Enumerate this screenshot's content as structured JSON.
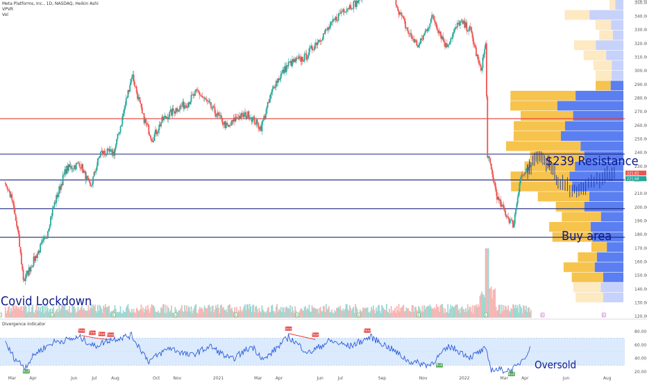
{
  "header": {
    "title": "Meta Platforms, Inc., 1D, NASDAQ, Heikin Ashi",
    "indicator1": "VPVR",
    "indicator2": "Vol",
    "osc_title": "Divergence indicator"
  },
  "annotations": {
    "resistance": "$239 Resistance",
    "buy": "Buy area",
    "covid": "Covid Lockdown",
    "oversold": "Oversold"
  },
  "colors": {
    "bull": "#26a69a",
    "bear": "#ef5350",
    "hline_blue": "#1a237e",
    "hline_red": "#e53935",
    "vp_up": "#5b7ff0",
    "vp_down": "#f6c34d",
    "vp_up_light": "#c7d2fb",
    "vp_down_light": "#fde9c2",
    "osc_line": "#2a5bd7",
    "osc_band": "#dbeafd",
    "bull_signal": "#43a047",
    "bear_signal": "#e53935"
  },
  "chart_data": [
    {
      "type": "candlestick",
      "title": "Meta Platforms, Inc., 1D, NASDAQ, Heikin Ashi",
      "y_ticks": [
        352,
        350,
        340,
        330,
        320,
        310,
        300,
        290,
        280,
        270,
        260,
        250,
        240,
        230,
        220,
        210,
        200,
        190,
        180,
        170,
        160,
        150,
        140,
        130,
        120
      ],
      "ylim": [
        118,
        352
      ],
      "x_ticks": [
        "Mar",
        "Apr",
        "Jun",
        "Jul",
        "Aug",
        "Oct",
        "Nov",
        "2021",
        "Mar",
        "Apr",
        "Jun",
        "Jul",
        "Sep",
        "Nov",
        "2022",
        "Mar",
        "Apr",
        "Jun",
        "Aug"
      ],
      "price_labels": [
        {
          "value": "221.82",
          "color": "#ef5350"
        },
        {
          "value": "221.68",
          "color": "#26a69a"
        }
      ],
      "horizontal_levels": [
        {
          "value": 265,
          "color": "red"
        },
        {
          "value": 239,
          "color": "blue"
        },
        {
          "value": 220,
          "color": "blue"
        },
        {
          "value": 199,
          "color": "blue"
        },
        {
          "value": 178,
          "color": "blue"
        }
      ],
      "price_path": [
        {
          "date": "2020-02-20",
          "close": 218
        },
        {
          "date": "2020-03-01",
          "close": 205
        },
        {
          "date": "2020-03-10",
          "close": 180
        },
        {
          "date": "2020-03-18",
          "close": 146
        },
        {
          "date": "2020-04-01",
          "close": 160
        },
        {
          "date": "2020-04-20",
          "close": 178
        },
        {
          "date": "2020-05-01",
          "close": 200
        },
        {
          "date": "2020-05-20",
          "close": 228
        },
        {
          "date": "2020-06-10",
          "close": 232
        },
        {
          "date": "2020-06-25",
          "close": 214
        },
        {
          "date": "2020-07-10",
          "close": 240
        },
        {
          "date": "2020-07-30",
          "close": 240
        },
        {
          "date": "2020-08-10",
          "close": 262
        },
        {
          "date": "2020-08-26",
          "close": 298
        },
        {
          "date": "2020-09-10",
          "close": 268
        },
        {
          "date": "2020-09-25",
          "close": 250
        },
        {
          "date": "2020-10-10",
          "close": 264
        },
        {
          "date": "2020-10-30",
          "close": 272
        },
        {
          "date": "2020-11-15",
          "close": 276
        },
        {
          "date": "2020-12-01",
          "close": 285
        },
        {
          "date": "2020-12-20",
          "close": 274
        },
        {
          "date": "2021-01-15",
          "close": 258
        },
        {
          "date": "2021-01-28",
          "close": 266
        },
        {
          "date": "2021-02-15",
          "close": 268
        },
        {
          "date": "2021-03-05",
          "close": 258
        },
        {
          "date": "2021-03-25",
          "close": 290
        },
        {
          "date": "2021-04-15",
          "close": 305
        },
        {
          "date": "2021-05-10",
          "close": 310
        },
        {
          "date": "2021-05-25",
          "close": 320
        },
        {
          "date": "2021-06-15",
          "close": 332
        },
        {
          "date": "2021-07-05",
          "close": 345
        },
        {
          "date": "2021-07-25",
          "close": 350
        },
        {
          "date": "2021-08-05",
          "close": 358
        },
        {
          "date": "2021-08-20",
          "close": 362
        },
        {
          "date": "2021-09-05",
          "close": 380
        },
        {
          "date": "2021-09-25",
          "close": 345
        },
        {
          "date": "2021-10-10",
          "close": 328
        },
        {
          "date": "2021-10-25",
          "close": 318
        },
        {
          "date": "2021-11-15",
          "close": 340
        },
        {
          "date": "2021-12-05",
          "close": 318
        },
        {
          "date": "2021-12-25",
          "close": 336
        },
        {
          "date": "2022-01-10",
          "close": 330
        },
        {
          "date": "2022-01-25",
          "close": 300
        },
        {
          "date": "2022-02-02",
          "close": 320
        },
        {
          "date": "2022-02-04",
          "close": 240
        },
        {
          "date": "2022-02-20",
          "close": 205
        },
        {
          "date": "2022-03-10",
          "close": 190
        },
        {
          "date": "2022-03-15",
          "close": 187
        },
        {
          "date": "2022-03-25",
          "close": 222
        },
        {
          "date": "2022-04-01",
          "close": 225
        },
        {
          "date": "2022-04-10",
          "close": 229
        }
      ],
      "projection_path": [
        {
          "date": "2022-04-05",
          "close": 228
        },
        {
          "date": "2022-04-20",
          "close": 238
        },
        {
          "date": "2022-05-05",
          "close": 232
        },
        {
          "date": "2022-05-20",
          "close": 220
        },
        {
          "date": "2022-06-10",
          "close": 212
        },
        {
          "date": "2022-06-30",
          "close": 215
        },
        {
          "date": "2022-07-25",
          "close": 222
        },
        {
          "date": "2022-08-15",
          "close": 225
        }
      ]
    },
    {
      "type": "bar",
      "title": "Vol",
      "description_values": "volume bars, mostly low with a large spike near 2022-02-04",
      "earnings_markers": [
        "E",
        "E",
        "E",
        "E",
        "E",
        "E",
        "E",
        "E",
        "E",
        "E",
        "E"
      ]
    },
    {
      "type": "line",
      "title": "Divergence indicator",
      "y_ticks": [
        80,
        60,
        40,
        20
      ],
      "ylim": [
        14,
        86
      ],
      "band": [
        30,
        70
      ],
      "signals": [
        {
          "label": "Bull",
          "date": "2020-03-22",
          "value": 28
        },
        {
          "label": "Bear",
          "date": "2020-06-12",
          "value": 74
        },
        {
          "label": "Bear",
          "date": "2020-06-28",
          "value": 71
        },
        {
          "label": "Bear",
          "date": "2020-07-12",
          "value": 69
        },
        {
          "label": "Bear",
          "date": "2020-07-25",
          "value": 68
        },
        {
          "label": "Bear",
          "date": "2021-04-15",
          "value": 77
        },
        {
          "label": "Bear",
          "date": "2021-05-25",
          "value": 68
        },
        {
          "label": "Bear",
          "date": "2021-08-10",
          "value": 74
        },
        {
          "label": "Bull",
          "date": "2021-11-25",
          "value": 37
        },
        {
          "label": "Bull",
          "date": "2022-03-12",
          "value": 24
        }
      ],
      "osc_path": [
        {
          "date": "2020-02-20",
          "v": 62
        },
        {
          "date": "2020-03-05",
          "v": 40
        },
        {
          "date": "2020-03-20",
          "v": 27
        },
        {
          "date": "2020-04-05",
          "v": 48
        },
        {
          "date": "2020-05-01",
          "v": 64
        },
        {
          "date": "2020-06-10",
          "v": 71
        },
        {
          "date": "2020-07-01",
          "v": 58
        },
        {
          "date": "2020-07-25",
          "v": 68
        },
        {
          "date": "2020-08-25",
          "v": 74
        },
        {
          "date": "2020-09-20",
          "v": 36
        },
        {
          "date": "2020-10-20",
          "v": 56
        },
        {
          "date": "2020-11-20",
          "v": 44
        },
        {
          "date": "2020-12-20",
          "v": 58
        },
        {
          "date": "2021-01-20",
          "v": 38
        },
        {
          "date": "2021-02-20",
          "v": 58
        },
        {
          "date": "2021-03-10",
          "v": 38
        },
        {
          "date": "2021-04-15",
          "v": 72
        },
        {
          "date": "2021-05-15",
          "v": 48
        },
        {
          "date": "2021-06-15",
          "v": 66
        },
        {
          "date": "2021-07-15",
          "v": 58
        },
        {
          "date": "2021-08-15",
          "v": 72
        },
        {
          "date": "2021-09-15",
          "v": 54
        },
        {
          "date": "2021-10-10",
          "v": 36
        },
        {
          "date": "2021-11-10",
          "v": 30
        },
        {
          "date": "2021-12-10",
          "v": 58
        },
        {
          "date": "2022-01-10",
          "v": 42
        },
        {
          "date": "2022-02-01",
          "v": 54
        },
        {
          "date": "2022-02-10",
          "v": 24
        },
        {
          "date": "2022-03-10",
          "v": 22
        },
        {
          "date": "2022-03-20",
          "v": 28
        },
        {
          "date": "2022-04-10",
          "v": 56
        }
      ]
    }
  ]
}
